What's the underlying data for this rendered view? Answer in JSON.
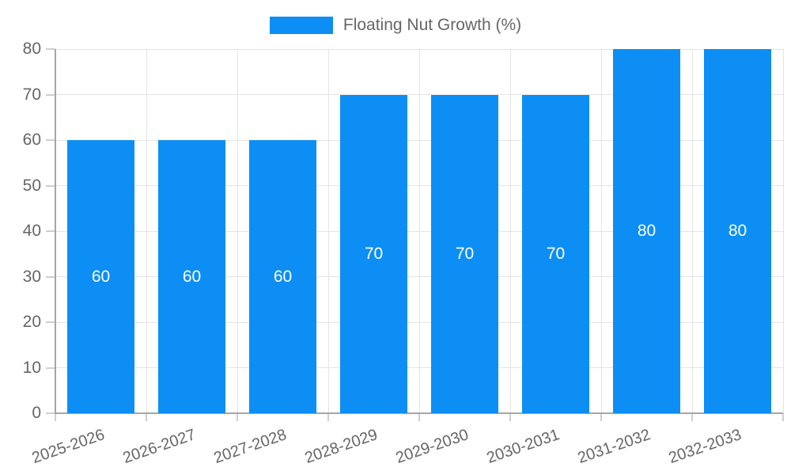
{
  "legend": {
    "label": "Floating Nut Growth (%)"
  },
  "chart_data": {
    "type": "bar",
    "title": "",
    "xlabel": "",
    "ylabel": "",
    "categories": [
      "2025-2026",
      "2026-2027",
      "2027-2028",
      "2028-2029",
      "2029-2030",
      "2030-2031",
      "2031-2032",
      "2032-2033"
    ],
    "series": [
      {
        "name": "Floating Nut Growth (%)",
        "values": [
          60,
          60,
          60,
          70,
          70,
          70,
          80,
          80
        ]
      }
    ],
    "value_labels": [
      "60",
      "60",
      "60",
      "70",
      "70",
      "70",
      "80",
      "80"
    ],
    "ylim": [
      0,
      80
    ],
    "yticks": [
      0,
      10,
      20,
      30,
      40,
      50,
      60,
      70,
      80
    ],
    "grid": true,
    "legend_position": "top-center",
    "colors": {
      "bar": "#0c8ef4",
      "value_label": "#ffffff",
      "axis_text": "#666666",
      "gridline": "#e4e4e4",
      "tick": "#cfcfcf",
      "axis_line": "#a6a6a6"
    }
  }
}
